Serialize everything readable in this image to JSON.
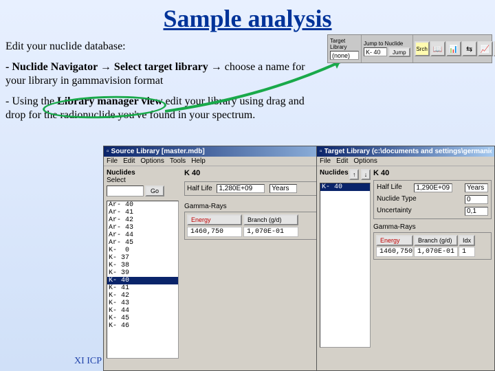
{
  "title": "Sample analysis",
  "instructions": {
    "line1": "Edit your nuclide database:",
    "line2_a": "- Nuclide Navigator ",
    "arrow": "→",
    "line2_b": " Select target library ",
    "line2_c": "choose a name for your library in gammavision format",
    "line3_a": "- Using the ",
    "line3_bold": "Library manager view",
    "line3_b": " edit your library using drag and drop for the radionuclide you've found in your spectrum."
  },
  "footer": "XI ICP",
  "toolbar": {
    "target_label": "Target Library",
    "target_value": "(none)",
    "jump_label": "Jump to Nuclide",
    "jump_value": "K- 40",
    "jump_btn": "Jump",
    "srch_btn": "Srch",
    "icons": [
      "📖",
      "📊",
      "⇆",
      "📈",
      "⊞"
    ]
  },
  "source_window": {
    "title": "Source Library [master.mdb]",
    "menu": [
      "File",
      "Edit",
      "Options",
      "Tools",
      "Help"
    ],
    "nuclides_label": "Nuclides",
    "select_label": "Select",
    "go_btn": "Go",
    "nuclides": [
      "Ar- 40",
      "Ar- 41",
      "Ar- 42",
      "Ar- 43",
      "Ar- 44",
      "Ar- 45",
      "K-  0",
      "K- 37",
      "K- 38",
      "K- 39",
      "K- 40",
      "K- 41",
      "K- 42",
      "K- 43",
      "K- 44",
      "K- 45",
      "K- 46"
    ],
    "selected_index": 10,
    "detail": {
      "heading": "K  40",
      "halflife_label": "Half Life",
      "halflife_value": "1,280E+09",
      "halflife_unit": "Years",
      "section_label": "Gamma-Rays",
      "energy_hdr": "Energy",
      "branch_hdr": "Branch (g/d)",
      "energy": "1460,750",
      "branch": "1,070E-01"
    }
  },
  "target_window": {
    "title": "Target Library (c:\\documents and settings\\germanio\\deskt...",
    "menu": [
      "File",
      "Edit",
      "Options"
    ],
    "nuclides_label": "Nuclides",
    "arrow_up": "↑",
    "arrow_down": "↓",
    "selected_nuclide": "K- 40",
    "detail": {
      "heading": "K  40",
      "halflife_label": "Half Life",
      "halflife_value": "1,290E+09",
      "halflife_unit": "Years",
      "type_label": "Nuclide Type",
      "type_value": "0",
      "unc_label": "Uncertainty",
      "unc_value": "0,1",
      "section_label": "Gamma-Rays",
      "energy_hdr": "Energy",
      "branch_hdr": "Branch (g/d)",
      "idx_hdr": "Idx",
      "energy": "1460,750",
      "branch": "1,070E-01",
      "idx": "1"
    }
  }
}
